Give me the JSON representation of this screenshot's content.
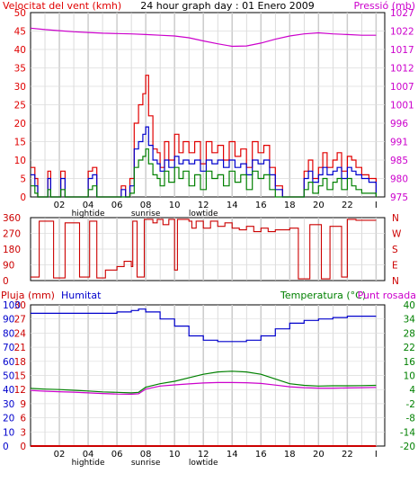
{
  "header": {
    "wind_title": "Velocitat del vent (kmh)",
    "graph_title": "24 hour graph day : 01 Enero 2009",
    "pressure_title": "Pressió (mb)"
  },
  "wind_scale": {
    "left_ticks": [
      "50",
      "45",
      "40",
      "35",
      "30",
      "25",
      "20",
      "15",
      "10",
      "5",
      "0"
    ],
    "right_ticks": [
      "1027",
      "1022",
      "1017",
      "1012",
      "1007",
      "1001",
      "996",
      "991",
      "985",
      "980",
      "975"
    ]
  },
  "direction_scale": {
    "left_ticks": [
      "360",
      "270",
      "180",
      "90",
      "0"
    ],
    "right_ticks": [
      "N",
      "W",
      "S",
      "E",
      "N"
    ]
  },
  "lower_header": {
    "rain_title": "Pluja (mm)",
    "humidity_title": "Humitat",
    "temp_title": "Temperatura (°C)",
    "dew_title": "Punt rosada"
  },
  "lower_scale": {
    "rain_ticks": [
      "30",
      "27",
      "24",
      "21",
      "18",
      "15",
      "12",
      "9",
      "6",
      "3",
      "0"
    ],
    "humidity_ticks": [
      "100",
      "90",
      "80",
      "70",
      "60",
      "50",
      "40",
      "30",
      "20",
      "10",
      "0"
    ],
    "temp_ticks": [
      "40",
      "34",
      "28",
      "22",
      "16",
      "10",
      "4",
      "-2",
      "-8",
      "-14",
      "-20"
    ]
  },
  "time_axis": {
    "labels": [
      "02",
      "04",
      "06",
      "08",
      "10",
      "12",
      "14",
      "16",
      "18",
      "20",
      "22",
      "I"
    ],
    "tide_labels": [
      "hightide",
      "sunrise",
      "lowtide"
    ]
  },
  "colors": {
    "wind_gust": "#e00000",
    "wind_avg": "#0000cc",
    "wind_min": "#008000",
    "pressure": "#cc00cc",
    "direction": "#cc0000",
    "humidity": "#0000cc",
    "temperature": "#008000",
    "dewpoint": "#cc00cc",
    "rain": "#cc0000"
  },
  "chart_data": [
    {
      "type": "line",
      "title": "24 hour graph day : 01 Enero 2009",
      "xlabel": "",
      "ylabel": "Velocitat del vent (kmh)",
      "y2label": "Pressió (mb)",
      "x_range": [
        0,
        24.6
      ],
      "ylim": [
        0,
        50
      ],
      "y2lim": [
        975,
        1027
      ],
      "grid": true,
      "x": [
        0,
        0.3,
        0.5,
        1,
        1.2,
        1.4,
        1.8,
        2.1,
        2.4,
        3,
        3.5,
        4,
        4.3,
        4.6,
        5,
        6,
        6.3,
        6.6,
        6.9,
        7.2,
        7.5,
        7.8,
        8,
        8.2,
        8.5,
        8.8,
        9,
        9.3,
        9.6,
        10,
        10.3,
        10.6,
        11,
        11.4,
        11.8,
        12.2,
        12.6,
        13,
        13.4,
        13.8,
        14.2,
        14.6,
        15,
        15.4,
        15.8,
        16.2,
        16.6,
        17,
        17.5,
        18,
        18.5,
        19,
        19.3,
        19.6,
        20,
        20.3,
        20.6,
        21,
        21.3,
        21.6,
        22,
        22.3,
        22.6,
        23,
        23.5,
        24
      ],
      "series": [
        {
          "name": "",
          "color_key": "wind_gust",
          "values": [
            8,
            5,
            0,
            0,
            7,
            0,
            0,
            7,
            0,
            0,
            0,
            7,
            8,
            0,
            0,
            0,
            3,
            0,
            5,
            20,
            25,
            28,
            33,
            22,
            13,
            12,
            8,
            15,
            10,
            17,
            12,
            15,
            12,
            15,
            9,
            15,
            12,
            14,
            10,
            15,
            11,
            13,
            8,
            15,
            12,
            14,
            8,
            3,
            0,
            0,
            0,
            7,
            10,
            5,
            8,
            12,
            8,
            10,
            12,
            7,
            11,
            10,
            8,
            6,
            5,
            0
          ]
        },
        {
          "name": "",
          "color_key": "wind_avg",
          "values": [
            6,
            3,
            0,
            0,
            5,
            0,
            0,
            5,
            0,
            0,
            0,
            5,
            6,
            0,
            0,
            0,
            2,
            0,
            3,
            13,
            15,
            17,
            19,
            14,
            10,
            9,
            7,
            10,
            8,
            11,
            9,
            10,
            9,
            10,
            7,
            10,
            9,
            10,
            8,
            10,
            8,
            9,
            6,
            10,
            9,
            10,
            6,
            2,
            0,
            0,
            0,
            5,
            7,
            4,
            6,
            8,
            6,
            7,
            8,
            5,
            8,
            7,
            6,
            5,
            4,
            0
          ]
        },
        {
          "name": "",
          "color_key": "wind_min",
          "values": [
            3,
            1,
            0,
            0,
            2,
            0,
            0,
            2,
            0,
            0,
            0,
            2,
            3,
            0,
            0,
            0,
            0,
            0,
            1,
            8,
            10,
            11,
            13,
            9,
            6,
            5,
            3,
            7,
            4,
            8,
            5,
            7,
            3,
            6,
            2,
            7,
            5,
            6,
            3,
            7,
            4,
            6,
            2,
            7,
            5,
            6,
            2,
            0,
            0,
            0,
            0,
            2,
            4,
            1,
            3,
            5,
            2,
            4,
            5,
            2,
            5,
            3,
            2,
            1,
            1,
            0
          ]
        },
        {
          "name": "",
          "color_key": "pressure",
          "axis": "y2",
          "x": [
            0,
            1,
            2,
            3,
            4,
            5,
            6,
            7,
            8,
            9,
            10,
            11,
            12,
            13,
            14,
            15,
            16,
            17,
            18,
            19,
            20,
            21,
            22,
            23,
            24
          ],
          "values": [
            1022.6,
            1022.2,
            1021.9,
            1021.6,
            1021.4,
            1021.2,
            1021.1,
            1021.0,
            1020.8,
            1020.6,
            1020.4,
            1019.9,
            1019.0,
            1018.2,
            1017.5,
            1017.6,
            1018.4,
            1019.5,
            1020.4,
            1021.0,
            1021.3,
            1021.0,
            1020.8,
            1020.6,
            1020.6
          ]
        }
      ]
    },
    {
      "type": "line",
      "title": "",
      "ylabel": "",
      "ylim": [
        0,
        360
      ],
      "y_tick_labels": [
        "360",
        "270",
        "180",
        "90",
        "0"
      ],
      "y2_tick_labels": [
        "N",
        "W",
        "S",
        "E",
        "N"
      ],
      "series": [
        {
          "name": "",
          "color_key": "direction",
          "x": [
            0,
            0.5,
            0.6,
            1.5,
            1.6,
            2.3,
            2.4,
            3.3,
            3.4,
            4,
            4.1,
            4.5,
            4.6,
            5,
            5.2,
            6,
            6.5,
            7,
            7.1,
            7.3,
            7.4,
            7.8,
            7.9,
            8.3,
            8.5,
            8.8,
            9.2,
            9.6,
            10,
            10.2,
            11,
            11.2,
            11.5,
            12,
            12.5,
            13,
            13.5,
            14,
            14.5,
            15,
            15.5,
            16,
            16.5,
            17,
            17.5,
            18,
            18.4,
            18.6,
            19.2,
            19.4,
            20,
            20.2,
            20.6,
            20.8,
            21.4,
            21.6,
            22,
            22.4,
            22.6,
            23,
            24
          ],
          "values": [
            20,
            20,
            340,
            340,
            15,
            15,
            330,
            330,
            20,
            20,
            340,
            340,
            15,
            15,
            60,
            80,
            110,
            80,
            340,
            340,
            20,
            20,
            350,
            350,
            330,
            350,
            320,
            350,
            60,
            350,
            340,
            300,
            340,
            300,
            340,
            310,
            330,
            300,
            290,
            310,
            280,
            300,
            280,
            290,
            290,
            300,
            300,
            10,
            10,
            320,
            320,
            10,
            10,
            310,
            310,
            20,
            350,
            350,
            345,
            345,
            345
          ]
        }
      ]
    },
    {
      "type": "line",
      "title": "",
      "ylabel": "Pluja (mm)",
      "ylim_rain": [
        0,
        30
      ],
      "ylim_humidity": [
        0,
        100
      ],
      "ylim_temp": [
        -20,
        40
      ],
      "grid": true,
      "x": [
        0,
        1,
        2,
        3,
        4,
        5,
        6,
        7,
        7.5,
        8,
        9,
        10,
        11,
        12,
        13,
        14,
        15,
        16,
        17,
        18,
        19,
        20,
        21,
        22,
        23,
        24
      ],
      "series": [
        {
          "name": "Humitat",
          "color_key": "humidity",
          "axis": "humidity",
          "values": [
            94,
            94,
            94,
            94,
            94,
            94,
            95,
            96,
            97,
            95,
            90,
            85,
            78,
            75,
            74,
            74,
            75,
            78,
            83,
            87,
            89,
            90,
            91,
            92,
            92,
            92
          ]
        },
        {
          "name": "Temperatura (°C)",
          "color_key": "temperature",
          "axis": "temp",
          "values": [
            4.5,
            4.2,
            4.0,
            3.7,
            3.4,
            3.0,
            2.8,
            2.6,
            2.8,
            5.0,
            6.5,
            7.5,
            9.0,
            10.5,
            11.5,
            11.8,
            11.5,
            10.5,
            8.5,
            6.5,
            5.8,
            5.5,
            5.6,
            5.6,
            5.7,
            5.8
          ]
        },
        {
          "name": "Punt rosada",
          "color_key": "dewpoint",
          "axis": "temp",
          "values": [
            3.6,
            3.3,
            3.1,
            2.9,
            2.6,
            2.3,
            2.1,
            2.0,
            2.2,
            4.2,
            5.5,
            6.0,
            6.4,
            6.8,
            7.0,
            7.0,
            6.9,
            6.6,
            5.9,
            5.2,
            4.8,
            4.6,
            4.6,
            4.7,
            4.8,
            4.9
          ]
        },
        {
          "name": "Pluja (mm)",
          "color_key": "rain",
          "axis": "rain",
          "values": [
            0,
            0,
            0,
            0,
            0,
            0,
            0,
            0,
            0,
            0,
            0,
            0,
            0,
            0,
            0,
            0,
            0,
            0,
            0,
            0,
            0,
            0,
            0,
            0,
            0,
            0
          ]
        }
      ]
    }
  ]
}
